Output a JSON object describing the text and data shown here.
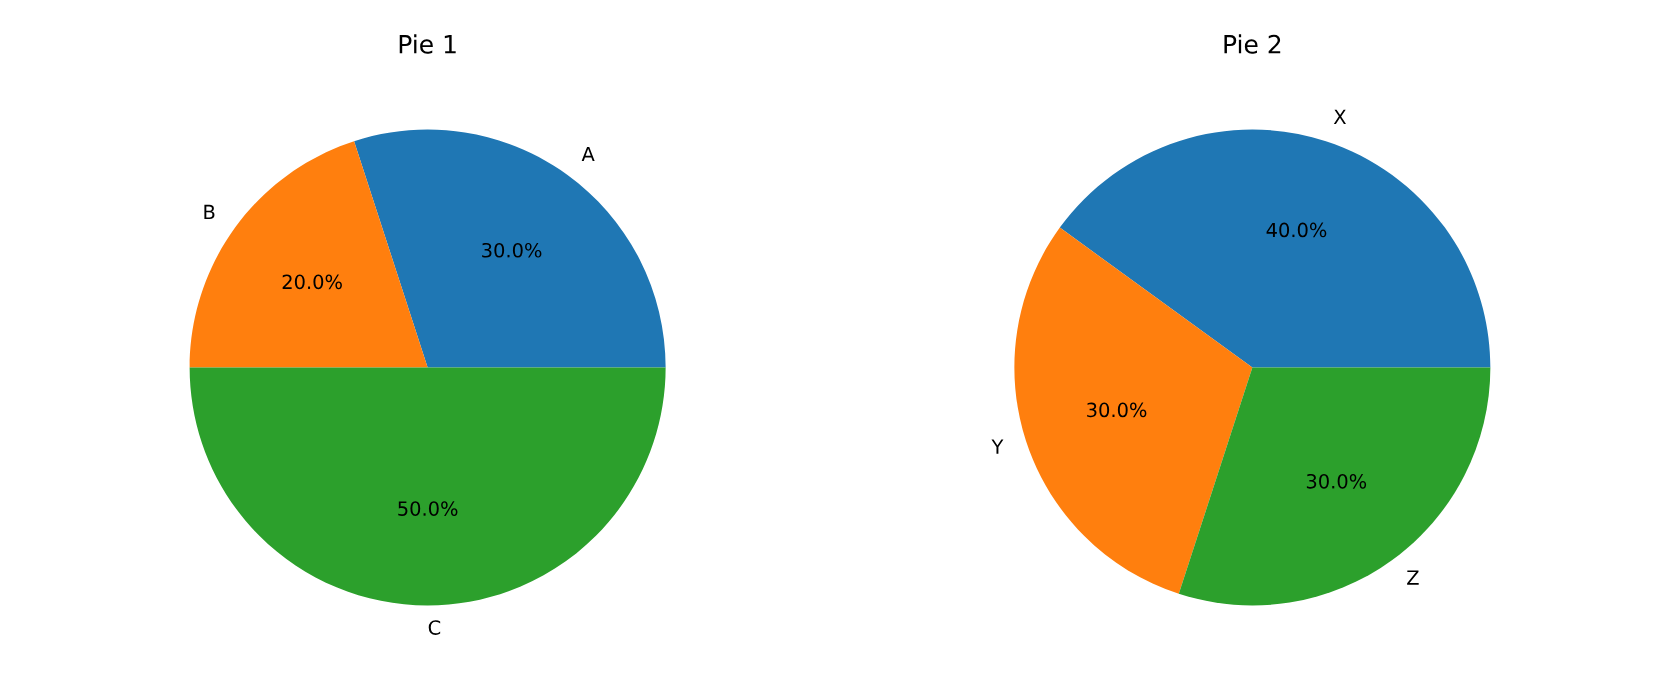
{
  "chart_data": [
    {
      "type": "pie",
      "title": "Pie 1",
      "categories": [
        "A",
        "B",
        "C"
      ],
      "values": [
        30,
        20,
        50
      ],
      "colors": [
        "#1f77b4",
        "#ff7f0e",
        "#2ca02c"
      ],
      "value_labels": [
        "30.0%",
        "20.0%",
        "50.0%"
      ]
    },
    {
      "type": "pie",
      "title": "Pie 2",
      "categories": [
        "X",
        "Y",
        "Z"
      ],
      "values": [
        40,
        30,
        30
      ],
      "colors": [
        "#1f77b4",
        "#ff7f0e",
        "#2ca02c"
      ],
      "value_labels": [
        "40.0%",
        "30.0%",
        "30.0%"
      ]
    }
  ]
}
